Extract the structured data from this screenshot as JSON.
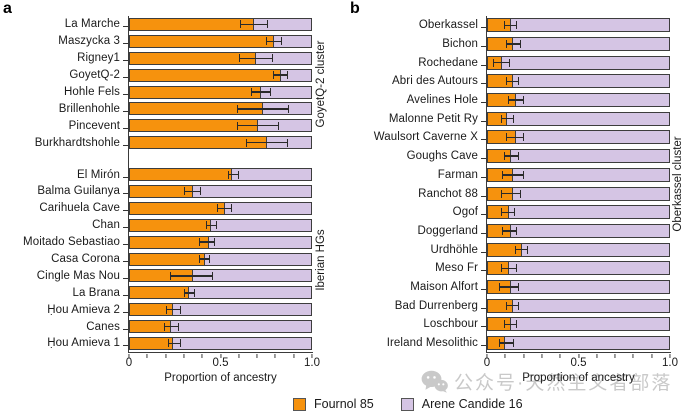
{
  "figure": {
    "panels": [
      {
        "letter": "a"
      },
      {
        "letter": "b"
      }
    ],
    "legend": {
      "items": [
        {
          "label": "Fournol 85",
          "color": "#F6920D"
        },
        {
          "label": "Arene Candide 16",
          "color": "#D5C5E4"
        }
      ]
    },
    "watermark": {
      "icon": "wechat-icon",
      "text": "公众号·天然主义者部落"
    },
    "colors": {
      "fournol": "#F6920D",
      "arene": "#D5C5E4",
      "bar_border": "#3D3D3D",
      "error_bar": "#2A2A2A",
      "axis": "#3A3A3A",
      "watermark": "#C0C0C0"
    }
  },
  "chart_data": [
    {
      "type": "bar",
      "orientation": "horizontal",
      "stacked": true,
      "stacked_total": 1.0,
      "panel": "a",
      "xlabel": "Proportion of ancestry",
      "xlim": [
        0,
        1.0
      ],
      "xticks": [
        0,
        0.5,
        1.0
      ],
      "xtick_labels": [
        "0",
        "0.5",
        "1.0"
      ],
      "minor_tick_step": 0.1,
      "series_names": [
        "Fournol 85",
        "Arene Candide 16"
      ],
      "groups": [
        {
          "name": "GoyetQ-2 cluster",
          "rows": [
            {
              "label": "La Marche",
              "fournol": 0.68,
              "ci": [
                0.61,
                0.75
              ]
            },
            {
              "label": "Maszycka 3",
              "fournol": 0.79,
              "ci": [
                0.75,
                0.83
              ]
            },
            {
              "label": "Rigney1",
              "fournol": 0.69,
              "ci": [
                0.6,
                0.78
              ]
            },
            {
              "label": "GoyetQ-2",
              "fournol": 0.83,
              "ci": [
                0.79,
                0.86
              ]
            },
            {
              "label": "Hohle Fels",
              "fournol": 0.72,
              "ci": [
                0.67,
                0.77
              ]
            },
            {
              "label": "Brillenhohle",
              "fournol": 0.73,
              "ci": [
                0.59,
                0.87
              ]
            },
            {
              "label": "Pincevent",
              "fournol": 0.7,
              "ci": [
                0.59,
                0.81
              ]
            },
            {
              "label": "Burkhardtshohle",
              "fournol": 0.75,
              "ci": [
                0.64,
                0.86
              ]
            }
          ]
        },
        {
          "name": "Iberian HGs",
          "rows": [
            {
              "label": "El Mirón",
              "fournol": 0.56,
              "ci": [
                0.54,
                0.59
              ]
            },
            {
              "label": "Balma Guilanya",
              "fournol": 0.34,
              "ci": [
                0.3,
                0.38
              ]
            },
            {
              "label": "Carihuela Cave",
              "fournol": 0.52,
              "ci": [
                0.48,
                0.55
              ]
            },
            {
              "label": "Chan",
              "fournol": 0.44,
              "ci": [
                0.42,
                0.47
              ]
            },
            {
              "label": "Moitado Sebastiao",
              "fournol": 0.43,
              "ci": [
                0.38,
                0.46
              ]
            },
            {
              "label": "Casa Corona",
              "fournol": 0.41,
              "ci": [
                0.38,
                0.43
              ]
            },
            {
              "label": "Cingle Mas Nou",
              "fournol": 0.34,
              "ci": [
                0.22,
                0.45
              ]
            },
            {
              "label": "La Brana",
              "fournol": 0.32,
              "ci": [
                0.3,
                0.35
              ]
            },
            {
              "label": "Ḥou Amieva 2",
              "fournol": 0.23,
              "ci": [
                0.2,
                0.27
              ]
            },
            {
              "label": "Canes",
              "fournol": 0.22,
              "ci": [
                0.19,
                0.26
              ]
            },
            {
              "label": "Ḥou Amieva 1",
              "fournol": 0.23,
              "ci": [
                0.21,
                0.27
              ]
            }
          ]
        }
      ]
    },
    {
      "type": "bar",
      "orientation": "horizontal",
      "stacked": true,
      "stacked_total": 1.0,
      "panel": "b",
      "xlabel": "Proportion of ancestry",
      "xlim": [
        0,
        1.0
      ],
      "xticks": [
        0,
        0.5,
        1.0
      ],
      "xtick_labels": [
        "0",
        "0.5",
        "1.0"
      ],
      "minor_tick_step": 0.1,
      "series_names": [
        "Fournol 85",
        "Arene Candide 16"
      ],
      "groups": [
        {
          "name": "Oberkassel cluster",
          "rows": [
            {
              "label": "Oberkassel",
              "fournol": 0.12,
              "ci": [
                0.09,
                0.15
              ]
            },
            {
              "label": "Bichon",
              "fournol": 0.13,
              "ci": [
                0.1,
                0.17
              ]
            },
            {
              "label": "Rochedane",
              "fournol": 0.07,
              "ci": [
                0.03,
                0.11
              ]
            },
            {
              "label": "Abri des Autours",
              "fournol": 0.13,
              "ci": [
                0.1,
                0.16
              ]
            },
            {
              "label": "Avelines Hole",
              "fournol": 0.15,
              "ci": [
                0.11,
                0.19
              ]
            },
            {
              "label": "Malonne Petit Ry",
              "fournol": 0.1,
              "ci": [
                0.07,
                0.13
              ]
            },
            {
              "label": "Waulsort Caverne X",
              "fournol": 0.15,
              "ci": [
                0.1,
                0.19
              ]
            },
            {
              "label": "Goughs Cave",
              "fournol": 0.12,
              "ci": [
                0.09,
                0.16
              ]
            },
            {
              "label": "Farman",
              "fournol": 0.13,
              "ci": [
                0.08,
                0.19
              ]
            },
            {
              "label": "Ranchot 88",
              "fournol": 0.13,
              "ci": [
                0.07,
                0.17
              ]
            },
            {
              "label": "Ogof",
              "fournol": 0.11,
              "ci": [
                0.07,
                0.14
              ]
            },
            {
              "label": "Doggerland",
              "fournol": 0.12,
              "ci": [
                0.08,
                0.15
              ]
            },
            {
              "label": "Urdhöhle",
              "fournol": 0.18,
              "ci": [
                0.15,
                0.21
              ]
            },
            {
              "label": "Meso Fr",
              "fournol": 0.11,
              "ci": [
                0.07,
                0.15
              ]
            },
            {
              "label": "Maison Alfort",
              "fournol": 0.12,
              "ci": [
                0.06,
                0.16
              ]
            },
            {
              "label": "Bad Durrenberg",
              "fournol": 0.13,
              "ci": [
                0.1,
                0.16
              ]
            },
            {
              "label": "Loschbour",
              "fournol": 0.12,
              "ci": [
                0.09,
                0.15
              ]
            },
            {
              "label": "Ireland Mesolithic",
              "fournol": 0.09,
              "ci": [
                0.06,
                0.13
              ]
            }
          ]
        }
      ]
    }
  ]
}
